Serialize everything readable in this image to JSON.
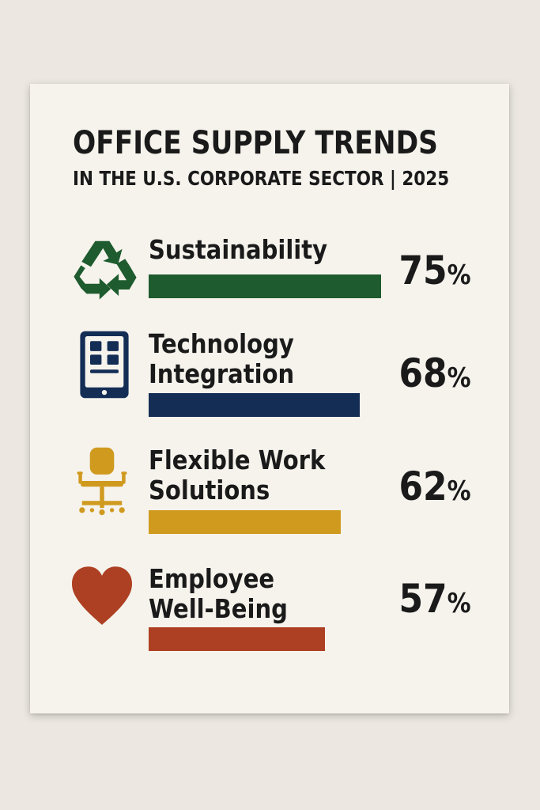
{
  "chart_data": {
    "type": "bar",
    "title": "OFFICE SUPPLY TRENDS",
    "subtitle": "IN THE U.S. CORPORATE SECTOR | 2025",
    "categories": [
      "Sustainability",
      "Technology Integration",
      "Flexible Work Solutions",
      "Employee Well-Being"
    ],
    "values": [
      75,
      68,
      62,
      57
    ],
    "unit": "%",
    "xlim": [
      0,
      100
    ],
    "orientation": "horizontal"
  },
  "rows": [
    {
      "label_lines": [
        "Sustainability"
      ],
      "value_text": "75",
      "unit": "%",
      "color": "#1e5b2e",
      "icon": "recycle-icon"
    },
    {
      "label_lines": [
        "Technology",
        "Integration"
      ],
      "value_text": "68",
      "unit": "%",
      "color": "#132d55",
      "icon": "tablet-icon"
    },
    {
      "label_lines": [
        "Flexible Work",
        "Solutions"
      ],
      "value_text": "62",
      "unit": "%",
      "color": "#d09a1f",
      "icon": "office-chair-icon"
    },
    {
      "label_lines": [
        "Employee",
        "Well-Being"
      ],
      "value_text": "57",
      "unit": "%",
      "color": "#ad4022",
      "icon": "heart-icon"
    }
  ]
}
